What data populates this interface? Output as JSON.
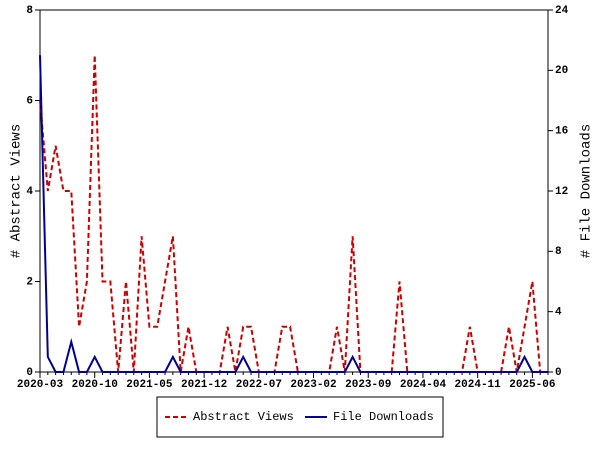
{
  "chart_data": {
    "type": "line",
    "categories": [
      "2020-03",
      null,
      null,
      null,
      null,
      null,
      null,
      "2020-10",
      null,
      null,
      null,
      null,
      null,
      null,
      "2021-05",
      null,
      null,
      null,
      null,
      null,
      null,
      "2021-12",
      null,
      null,
      null,
      null,
      null,
      null,
      "2022-07",
      null,
      null,
      null,
      null,
      null,
      null,
      "2023-02",
      null,
      null,
      null,
      null,
      null,
      null,
      "2023-09",
      null,
      null,
      null,
      null,
      null,
      null,
      "2024-04",
      null,
      null,
      null,
      null,
      null,
      null,
      "2024-11",
      null,
      null,
      null,
      null,
      null,
      null,
      "2025-06",
      null,
      null
    ],
    "ylabel": "# Abstract Views",
    "y2label": "# File Downloads",
    "ylim": [
      0,
      8
    ],
    "yticks": [
      0,
      2,
      4,
      6,
      8
    ],
    "y2lim": [
      0,
      24
    ],
    "y2ticks": [
      0,
      4,
      8,
      12,
      16,
      20,
      24
    ],
    "series": [
      {
        "name": "Abstract Views",
        "color": "#cc0000",
        "dashed": true,
        "values": [
          6,
          4,
          5,
          4,
          4,
          1,
          2,
          7,
          2,
          2,
          0,
          2,
          0,
          3,
          1,
          1,
          2,
          3,
          0,
          1,
          0,
          0,
          0,
          0,
          1,
          0,
          1,
          1,
          0,
          0,
          0,
          1,
          1,
          0,
          0,
          0,
          0,
          0,
          1,
          0,
          3,
          0,
          0,
          0,
          0,
          0,
          2,
          0,
          0,
          0,
          0,
          0,
          0,
          0,
          0,
          1,
          0,
          0,
          0,
          0,
          1,
          0,
          1,
          2,
          0,
          0
        ]
      },
      {
        "name": "File Downloads",
        "color": "#000099",
        "axis": "y2",
        "values": [
          21,
          1,
          0,
          0,
          2,
          0,
          0,
          1,
          0,
          0,
          0,
          0,
          0,
          0,
          0,
          0,
          0,
          1,
          0,
          0,
          0,
          0,
          0,
          0,
          0,
          0,
          1,
          0,
          0,
          0,
          0,
          0,
          0,
          0,
          0,
          0,
          0,
          0,
          0,
          0,
          1,
          0,
          0,
          0,
          0,
          0,
          0,
          0,
          0,
          0,
          0,
          0,
          0,
          0,
          0,
          0,
          0,
          0,
          0,
          0,
          0,
          0,
          1,
          0,
          0,
          0
        ]
      }
    ]
  }
}
